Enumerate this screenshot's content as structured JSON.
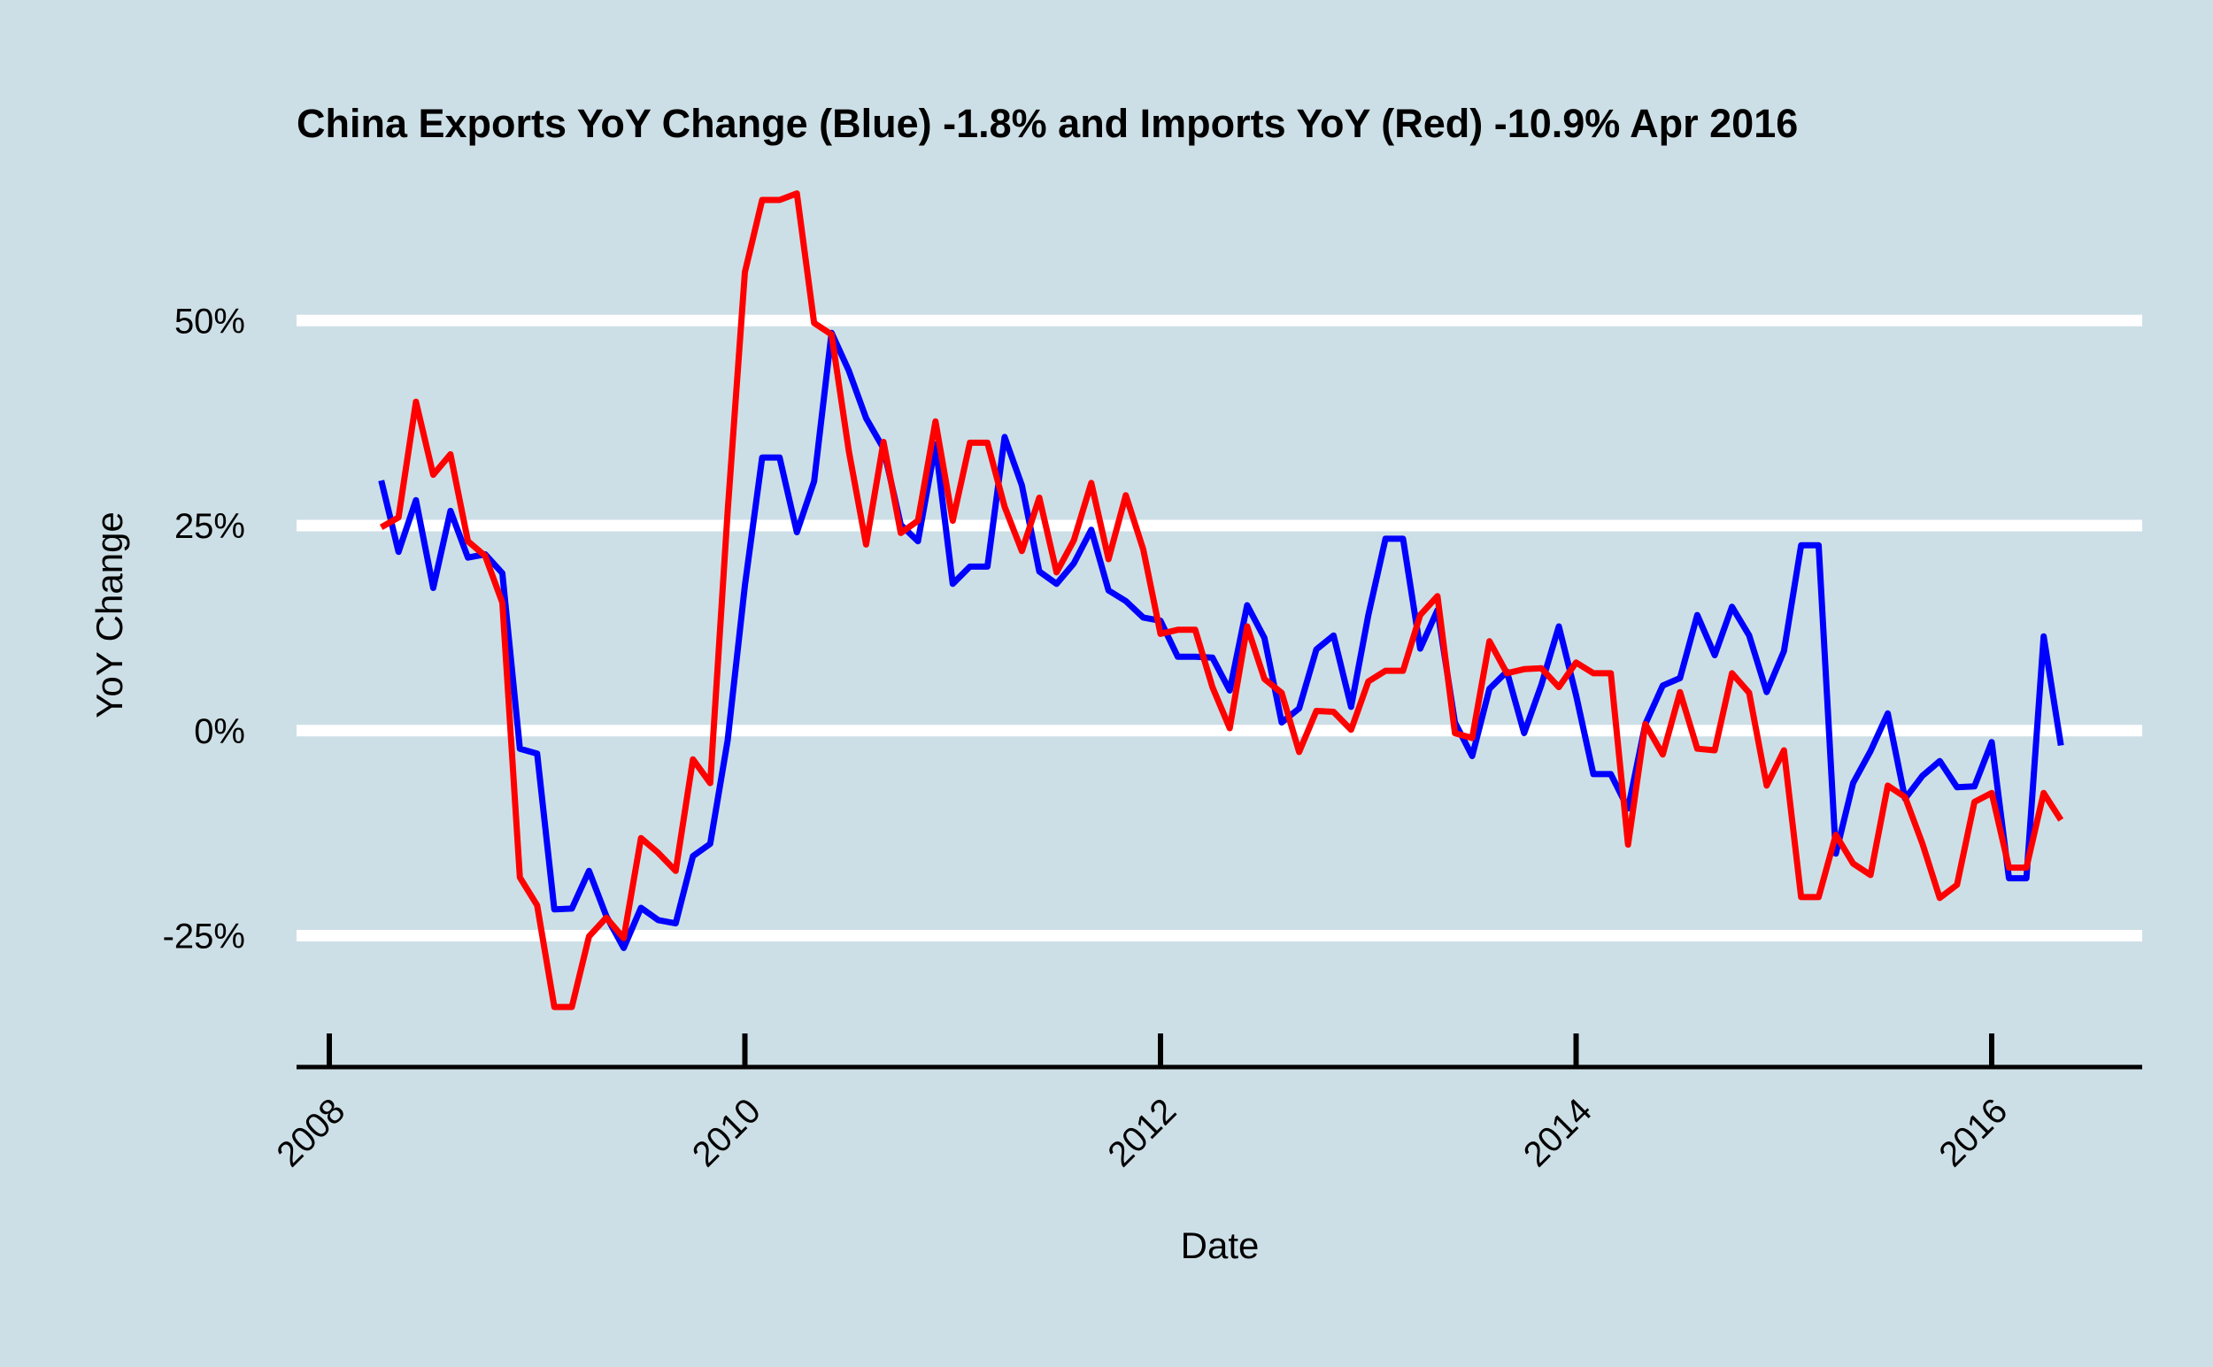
{
  "colors": {
    "background": "#cddfe6",
    "grid": "#ffffff",
    "exports": "#0000ff",
    "imports": "#ff0000",
    "axis": "#000000"
  },
  "chart_data": {
    "type": "line",
    "title": "China Exports YoY Change (Blue) -1.8% and Imports YoY (Red) -10.9% Apr 2016",
    "xlabel": "Date",
    "ylabel": "YoY Change",
    "x_ticks": [
      "2008",
      "2010",
      "2012",
      "2014",
      "2016"
    ],
    "x_tick_values": [
      2008,
      2010,
      2012,
      2014,
      2016
    ],
    "y_ticks": [
      "50%",
      "25%",
      "0%",
      "-25%"
    ],
    "y_tick_values": [
      50,
      25,
      0,
      -25
    ],
    "xlim": [
      2007.85,
      2016.75
    ],
    "ylim": [
      -38,
      66
    ],
    "grid": true,
    "legend": "none",
    "x": [
      2008.25,
      2008.333,
      2008.417,
      2008.5,
      2008.583,
      2008.667,
      2008.75,
      2008.833,
      2008.917,
      2009.0,
      2009.083,
      2009.167,
      2009.25,
      2009.333,
      2009.417,
      2009.5,
      2009.583,
      2009.667,
      2009.75,
      2009.833,
      2009.917,
      2010.0,
      2010.083,
      2010.167,
      2010.25,
      2010.333,
      2010.417,
      2010.5,
      2010.583,
      2010.667,
      2010.75,
      2010.833,
      2010.917,
      2011.0,
      2011.083,
      2011.167,
      2011.25,
      2011.333,
      2011.417,
      2011.5,
      2011.583,
      2011.667,
      2011.75,
      2011.833,
      2011.917,
      2012.0,
      2012.083,
      2012.167,
      2012.25,
      2012.333,
      2012.417,
      2012.5,
      2012.583,
      2012.667,
      2012.75,
      2012.833,
      2012.917,
      2013.0,
      2013.083,
      2013.167,
      2013.25,
      2013.333,
      2013.417,
      2013.5,
      2013.583,
      2013.667,
      2013.75,
      2013.833,
      2013.917,
      2014.0,
      2014.083,
      2014.167,
      2014.25,
      2014.333,
      2014.417,
      2014.5,
      2014.583,
      2014.667,
      2014.75,
      2014.833,
      2014.917,
      2015.0,
      2015.083,
      2015.167,
      2015.25,
      2015.333,
      2015.417,
      2015.5,
      2015.583,
      2015.667,
      2015.75,
      2015.833,
      2015.917,
      2016.0,
      2016.083,
      2016.167,
      2016.25,
      2016.333
    ],
    "series": [
      {
        "values": [
          30.5,
          21.8,
          28.1,
          17.4,
          26.8,
          21.1,
          21.5,
          19.2,
          -2.2,
          -2.8,
          -21.8,
          -21.7,
          -17.1,
          -22.6,
          -26.5,
          -21.6,
          -23.1,
          -23.5,
          -15.3,
          -13.8,
          -1.2,
          17.7,
          33.3,
          33.3,
          24.2,
          30.4,
          48.5,
          43.9,
          38.1,
          34.4,
          25.1,
          23.1,
          34.9,
          17.9,
          20.0,
          20.0,
          35.8,
          29.9,
          19.4,
          17.9,
          20.4,
          24.5,
          17.1,
          15.8,
          13.8,
          13.4,
          9.0,
          9.0,
          8.9,
          4.9,
          15.3,
          11.3,
          1.0,
          2.7,
          9.9,
          11.6,
          2.9,
          14.1,
          23.4,
          23.4,
          10.0,
          14.7,
          1.0,
          -3.1,
          5.1,
          7.2,
          -0.3,
          5.6,
          12.7,
          4.3,
          -5.3,
          -5.3,
          -9.5,
          0.8,
          5.5,
          6.4,
          14.1,
          9.2,
          15.1,
          11.6,
          4.7,
          9.7,
          22.6,
          22.6,
          -15.0,
          -6.4,
          -2.5,
          2.1,
          -8.3,
          -5.5,
          -3.7,
          -6.9,
          -6.8,
          -1.4,
          -18.0,
          -18.0,
          11.5,
          -1.8
        ]
      },
      {
        "values": [
          24.8,
          26.0,
          40.1,
          31.2,
          33.7,
          23.1,
          21.3,
          15.6,
          -17.9,
          -21.3,
          -33.7,
          -33.7,
          -25.1,
          -22.8,
          -25.3,
          -13.1,
          -14.9,
          -17.1,
          -3.5,
          -6.4,
          26.7,
          55.9,
          64.7,
          64.7,
          65.5,
          49.7,
          48.3,
          34.1,
          22.7,
          35.2,
          24.1,
          25.6,
          37.7,
          25.6,
          35.1,
          35.1,
          27.3,
          21.9,
          28.4,
          19.3,
          23.2,
          30.2,
          20.9,
          28.7,
          22.1,
          11.8,
          12.3,
          12.3,
          5.3,
          0.3,
          12.7,
          6.3,
          4.6,
          -2.6,
          2.4,
          2.3,
          0.1,
          6.0,
          7.3,
          7.3,
          14.1,
          16.4,
          -0.3,
          -0.9,
          10.9,
          7.0,
          7.5,
          7.6,
          5.3,
          8.3,
          7.0,
          7.0,
          -13.9,
          0.8,
          -2.9,
          4.7,
          -2.2,
          -2.4,
          7.0,
          4.6,
          -6.7,
          -2.4,
          -20.3,
          -20.3,
          -12.7,
          -16.2,
          -17.6,
          -6.7,
          -8.1,
          -13.8,
          -20.4,
          -18.8,
          -8.7,
          -7.6,
          -16.7,
          -16.7,
          -7.6,
          -10.9
        ]
      }
    ]
  }
}
